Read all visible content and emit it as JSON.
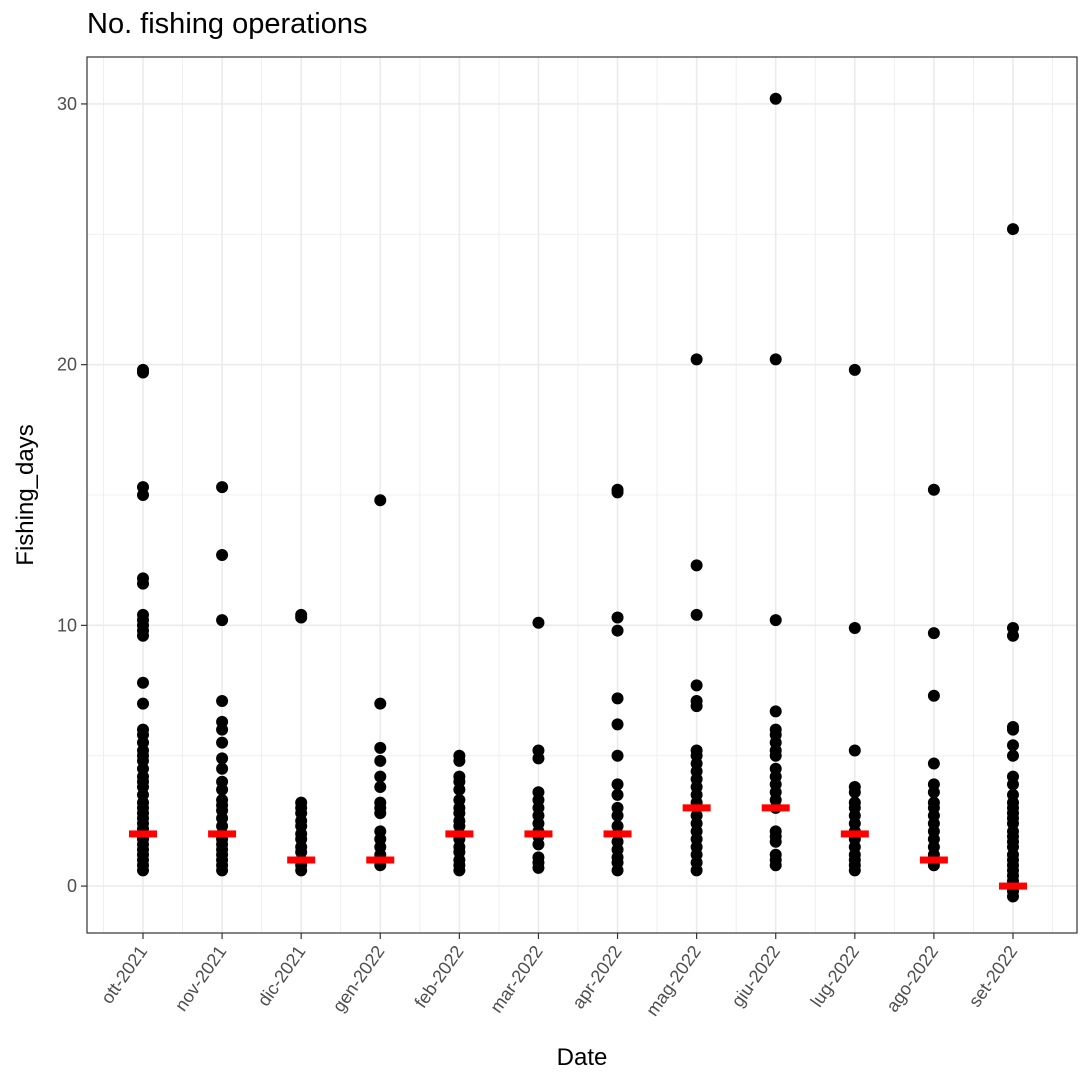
{
  "chart_data": {
    "type": "scatter",
    "title": "No. fishing operations",
    "xlabel": "Date",
    "ylabel": "Fishing_days",
    "ylim": [
      -1.8,
      31.8
    ],
    "yticks": [
      0,
      10,
      20,
      30
    ],
    "grid": true,
    "categories": [
      "ott-2021",
      "nov-2021",
      "dic-2021",
      "gen-2022",
      "feb-2022",
      "mar-2022",
      "apr-2022",
      "mag-2022",
      "giu-2022",
      "lug-2022",
      "ago-2022",
      "set-2022"
    ],
    "points": [
      [
        19.8,
        19.7,
        15.3,
        15,
        11.8,
        11.6,
        10.4,
        10.2,
        10,
        9.8,
        9.6,
        7.8,
        7,
        6,
        5.8,
        5.5,
        5.2,
        5,
        4.8,
        4.5,
        4.2,
        4,
        3.8,
        3.5,
        3.2,
        3,
        2.8,
        2.6,
        2.4,
        2.2,
        2,
        1.8,
        1.6,
        1.4,
        1.2,
        1,
        0.8,
        0.6
      ],
      [
        15.3,
        12.7,
        10.2,
        7.1,
        6.3,
        6,
        5.5,
        4.9,
        4.5,
        4,
        3.7,
        3.3,
        3.1,
        2.9,
        2.6,
        2.3,
        2,
        1.8,
        1.6,
        1.4,
        1.2,
        1,
        0.8,
        0.6
      ],
      [
        10.4,
        10.3,
        3.2,
        3,
        2.8,
        2.5,
        2.3,
        2,
        1.8,
        1.5,
        1.3,
        1,
        0.8,
        0.6
      ],
      [
        14.8,
        7,
        5.3,
        4.8,
        4.2,
        3.8,
        3.2,
        3,
        2.8,
        2.1,
        1.8,
        1.5,
        1.2,
        1,
        0.8
      ],
      [
        5,
        4.8,
        4.2,
        4,
        3.7,
        3.3,
        3,
        2.8,
        2.5,
        2.3,
        2,
        1.8,
        1.5,
        1.3,
        1,
        0.8,
        0.6
      ],
      [
        10.1,
        5.2,
        4.9,
        3.6,
        3.3,
        3,
        2.7,
        2.4,
        2.1,
        1.9,
        1.6,
        1.1,
        0.9,
        0.7
      ],
      [
        15.2,
        15.1,
        10.3,
        9.8,
        7.2,
        6.2,
        5,
        3.9,
        3.5,
        3,
        2.7,
        2.3,
        2,
        1.7,
        1.4,
        1.1,
        0.9,
        0.6
      ],
      [
        20.2,
        12.3,
        10.4,
        7.7,
        7.1,
        6.9,
        5.2,
        5,
        4.7,
        4.4,
        4.1,
        3.8,
        3.5,
        3.2,
        3,
        2.7,
        2.4,
        2.1,
        1.8,
        1.5,
        1.2,
        0.9,
        0.6
      ],
      [
        30.2,
        20.2,
        10.2,
        6.7,
        6,
        5.8,
        5.5,
        5.2,
        5,
        4.5,
        4.2,
        3.9,
        3.6,
        3.3,
        3,
        2.1,
        1.9,
        1.7,
        1.2,
        1,
        0.8
      ],
      [
        19.8,
        9.9,
        5.2,
        3.8,
        3.6,
        3.2,
        3,
        2.7,
        2.4,
        2.1,
        1.8,
        1.5,
        1.2,
        1,
        0.8,
        0.6
      ],
      [
        15.2,
        9.7,
        7.3,
        4.7,
        3.9,
        3.6,
        3.2,
        3,
        2.7,
        2.4,
        2.1,
        1.8,
        1.5,
        1.2,
        1,
        0.8
      ],
      [
        25.2,
        9.9,
        9.6,
        6.1,
        6,
        5.4,
        5,
        4.2,
        3.9,
        3.5,
        3.2,
        3,
        2.8,
        2.6,
        2.4,
        2.1,
        1.9,
        1.7,
        1.5,
        1.2,
        1,
        0.8,
        0.6,
        0.4,
        0.2,
        -0.2,
        -0.4
      ]
    ],
    "medians": [
      2,
      2,
      1,
      1,
      2,
      2,
      2,
      3,
      3,
      2,
      1,
      0
    ],
    "point_color": "#000000",
    "median_color": "#ff0000",
    "grid_color": "#ebebeb",
    "panel_border_color": "#333333"
  }
}
